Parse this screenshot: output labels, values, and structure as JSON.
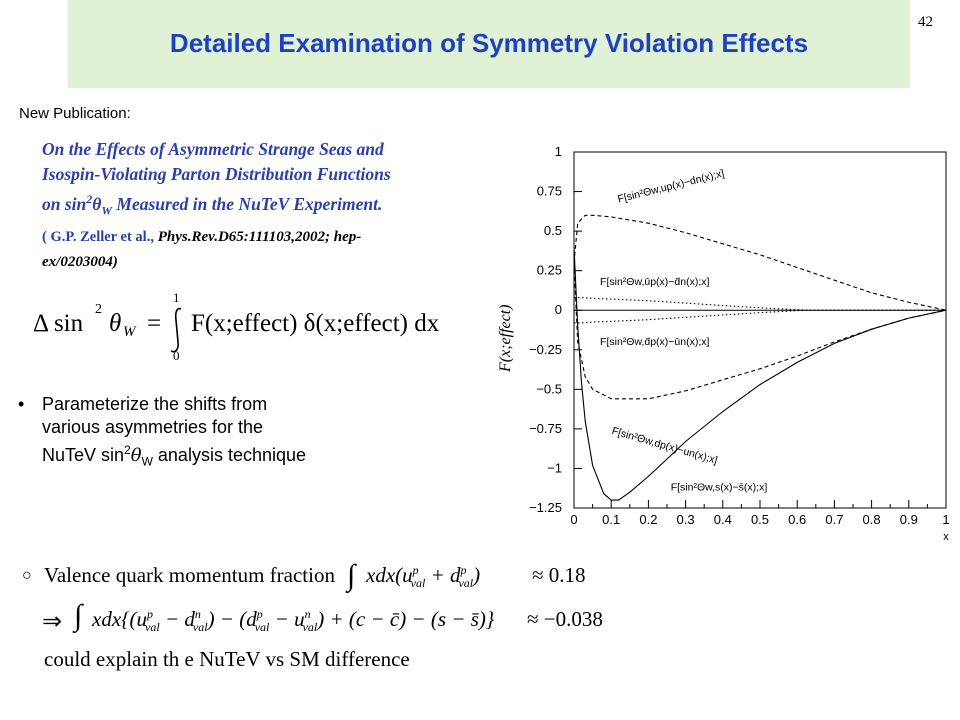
{
  "slide": {
    "title": "Detailed Examination of Symmetry Violation Effects",
    "page_number": "42",
    "new_publication_label": "New Publication:"
  },
  "citation": {
    "line1": "On the Effects of Asymmetric Strange Seas and",
    "line2": "Isospin-Violating Parton Distribution Functions",
    "line3_pre": "on sin",
    "line3_sup": "2",
    "line3_theta": "θ",
    "line3_sub": "W",
    "line3_post": " Measured in the NuTeV Experiment.",
    "authors": "( G.P. Zeller et al.,",
    "journal": " Phys.Rev.D65:111103,2002; hep-",
    "arxiv": "ex/0203004)"
  },
  "formula_main": {
    "lhs": "Δ sin",
    "power": "2",
    "theta_w": "θ",
    "theta_sub": "W",
    "equals": "=",
    "upper_limit": "1",
    "lower_limit": "0",
    "integrand": "F(x;effect) δ(x;effect) dx"
  },
  "bullet": {
    "dot": "•",
    "line1": "Parameterize the shifts from",
    "line2": "various asymmetries for the",
    "line3_pre": "NuTeV sin",
    "line3_sup": "2",
    "line3_theta": "θ",
    "line3_sub": "W",
    "line3_post": " analysis technique"
  },
  "formula_bottom": {
    "circle": "○",
    "text1": "Valence quark momentum fraction",
    "approx1": "≈ 0.18",
    "implies": "⇒",
    "approx2": "≈ −0.038",
    "text3": "could explain th e NuTeV vs SM difference"
  },
  "chart_data": {
    "type": "line",
    "ylabel": "F(x;effect)",
    "xlabel": "x",
    "xlim": [
      0,
      1
    ],
    "ylim": [
      -1.25,
      1
    ],
    "xticks": [
      "0",
      "0.1",
      "0.2",
      "0.3",
      "0.4",
      "0.5",
      "0.6",
      "0.7",
      "0.8",
      "0.9",
      "1"
    ],
    "yticks": [
      "1",
      "0.75",
      "0.5",
      "0.25",
      "0",
      "−0.25",
      "−0.5",
      "−0.75",
      "−1",
      "−1.25"
    ],
    "ytick_values": [
      1,
      0.75,
      0.5,
      0.25,
      0,
      -0.25,
      -0.5,
      -0.75,
      -1,
      -1.25
    ],
    "series": [
      {
        "name": "F[sin²Θw,up(x)−dn(x);x]",
        "style": "dashed",
        "x": [
          0,
          0.01,
          0.03,
          0.05,
          0.1,
          0.2,
          0.3,
          0.4,
          0.5,
          0.6,
          0.7,
          0.8,
          0.9,
          1.0
        ],
        "y": [
          0.3,
          0.55,
          0.6,
          0.6,
          0.59,
          0.55,
          0.49,
          0.42,
          0.35,
          0.27,
          0.19,
          0.11,
          0.05,
          0
        ]
      },
      {
        "name": "F[sin²Θw,ūp(x)−d̄n(x);x]",
        "style": "dotted",
        "x": [
          0,
          0.02,
          0.05,
          0.1,
          0.2,
          0.3,
          0.4,
          0.5,
          0.6,
          0.63,
          0.7,
          0.8,
          0.9,
          1.0
        ],
        "y": [
          0.08,
          0.08,
          0.075,
          0.07,
          0.06,
          0.045,
          0.03,
          0.015,
          0.003,
          0,
          0,
          0,
          0,
          0
        ]
      },
      {
        "name": "F[sin²Θw,d̄p(x)−ūn(x);x]",
        "style": "dotted",
        "x": [
          0,
          0.02,
          0.05,
          0.1,
          0.2,
          0.3,
          0.4,
          0.5,
          0.6,
          0.63,
          0.7,
          0.8,
          0.9,
          1.0
        ],
        "y": [
          -0.08,
          -0.08,
          -0.075,
          -0.07,
          -0.06,
          -0.045,
          -0.03,
          -0.015,
          -0.003,
          0,
          0,
          0,
          0,
          0
        ]
      },
      {
        "name": "F[sin²Θw,dp(x)−un(x);x]",
        "style": "dashed",
        "x": [
          0,
          0.01,
          0.03,
          0.05,
          0.1,
          0.2,
          0.3,
          0.4,
          0.5,
          0.6,
          0.7,
          0.8,
          0.9,
          1.0
        ],
        "y": [
          0.3,
          -0.2,
          -0.42,
          -0.5,
          -0.56,
          -0.56,
          -0.51,
          -0.44,
          -0.37,
          -0.29,
          -0.2,
          -0.12,
          -0.05,
          0
        ]
      },
      {
        "name": "F[sin²Θw,s(x)−s̄(x);x]",
        "style": "solid",
        "x": [
          0,
          0.01,
          0.02,
          0.03,
          0.05,
          0.08,
          0.1,
          0.12,
          0.15,
          0.2,
          0.25,
          0.3,
          0.4,
          0.5,
          0.6,
          0.7,
          0.8,
          0.9,
          1.0
        ],
        "y": [
          0.4,
          -0.1,
          -0.45,
          -0.7,
          -0.98,
          -1.16,
          -1.2,
          -1.2,
          -1.15,
          -1.05,
          -0.94,
          -0.83,
          -0.64,
          -0.47,
          -0.33,
          -0.21,
          -0.12,
          -0.05,
          0
        ]
      }
    ],
    "annotations": [
      {
        "text": "F[sin²Θw,up(x)−dn(x);x]",
        "x": 0.12,
        "y": 0.68,
        "rot": 14
      },
      {
        "text": "F[sin²Θw,ūp(x)−d̄n(x);x]",
        "x": 0.07,
        "y": 0.16,
        "rot": 0
      },
      {
        "text": "F[sin²Θw,d̄p(x)−ūn(x);x]",
        "x": 0.07,
        "y": -0.22,
        "rot": 0
      },
      {
        "text": "F[sin²Θw,dp(x)−un(x);x]",
        "x": 0.1,
        "y": -0.78,
        "rot": -16
      },
      {
        "text": "F[sin²Θw,s(x)−s̄(x);x]",
        "x": 0.26,
        "y": -1.14,
        "rot": 0
      }
    ]
  }
}
